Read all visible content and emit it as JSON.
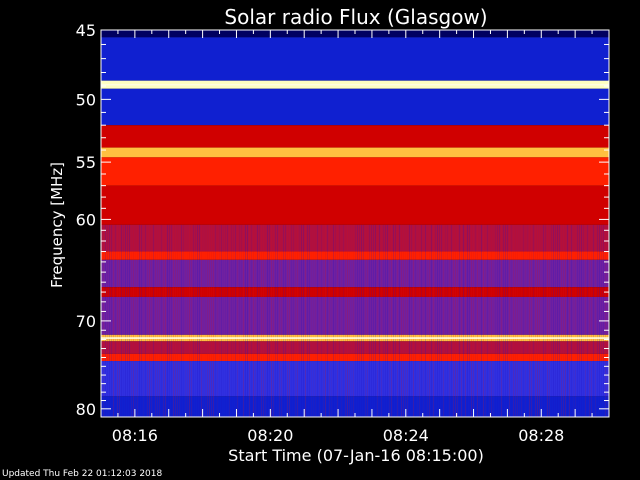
{
  "chart_data": {
    "type": "heatmap",
    "title": "Solar radio Flux (Glasgow)",
    "xlabel": "Start Time (07-Jan-16 08:15:00)",
    "ylabel": "Frequency [MHz]",
    "x_range": [
      "08:15:00",
      "08:30:00"
    ],
    "x_ticks": [
      "08:16",
      "08:20",
      "08:24",
      "08:28"
    ],
    "y_range": [
      45,
      81
    ],
    "y_scale": "log",
    "y_ticks": [
      45,
      50,
      55,
      60,
      70,
      80
    ],
    "bands": [
      {
        "from": 45,
        "to": 45.5,
        "level": 0.05
      },
      {
        "from": 45.5,
        "to": 48.6,
        "level": 0.12
      },
      {
        "from": 48.6,
        "to": 49.2,
        "level": 0.95
      },
      {
        "from": 49.2,
        "to": 52.0,
        "level": 0.1
      },
      {
        "from": 52.0,
        "to": 53.8,
        "level": 0.55
      },
      {
        "from": 53.8,
        "to": 54.6,
        "level": 0.85
      },
      {
        "from": 54.6,
        "to": 57.0,
        "level": 0.7
      },
      {
        "from": 57.0,
        "to": 60.5,
        "level": 0.58
      },
      {
        "from": 60.5,
        "to": 63.0,
        "level": 0.45
      },
      {
        "from": 63.0,
        "to": 63.8,
        "level": 0.7
      },
      {
        "from": 63.8,
        "to": 66.5,
        "level": 0.3
      },
      {
        "from": 66.5,
        "to": 67.5,
        "level": 0.5
      },
      {
        "from": 67.5,
        "to": 71.5,
        "level": 0.38
      },
      {
        "from": 71.5,
        "to": 72.2,
        "level": 0.92
      },
      {
        "from": 72.2,
        "to": 73.6,
        "level": 0.42
      },
      {
        "from": 73.6,
        "to": 74.4,
        "level": 0.62
      },
      {
        "from": 74.4,
        "to": 78.5,
        "level": 0.25
      },
      {
        "from": 78.5,
        "to": 81,
        "level": 0.15
      }
    ],
    "colormap": [
      "#000060",
      "#1020d0",
      "#3030e0",
      "#7020a0",
      "#b01040",
      "#d00000",
      "#ff2000",
      "#ff7010",
      "#ffc040",
      "#ffffc0"
    ],
    "grid": false,
    "legend": "none"
  },
  "footer": {
    "updated": "Updated Thu Feb 22 01:12:03 2018"
  }
}
